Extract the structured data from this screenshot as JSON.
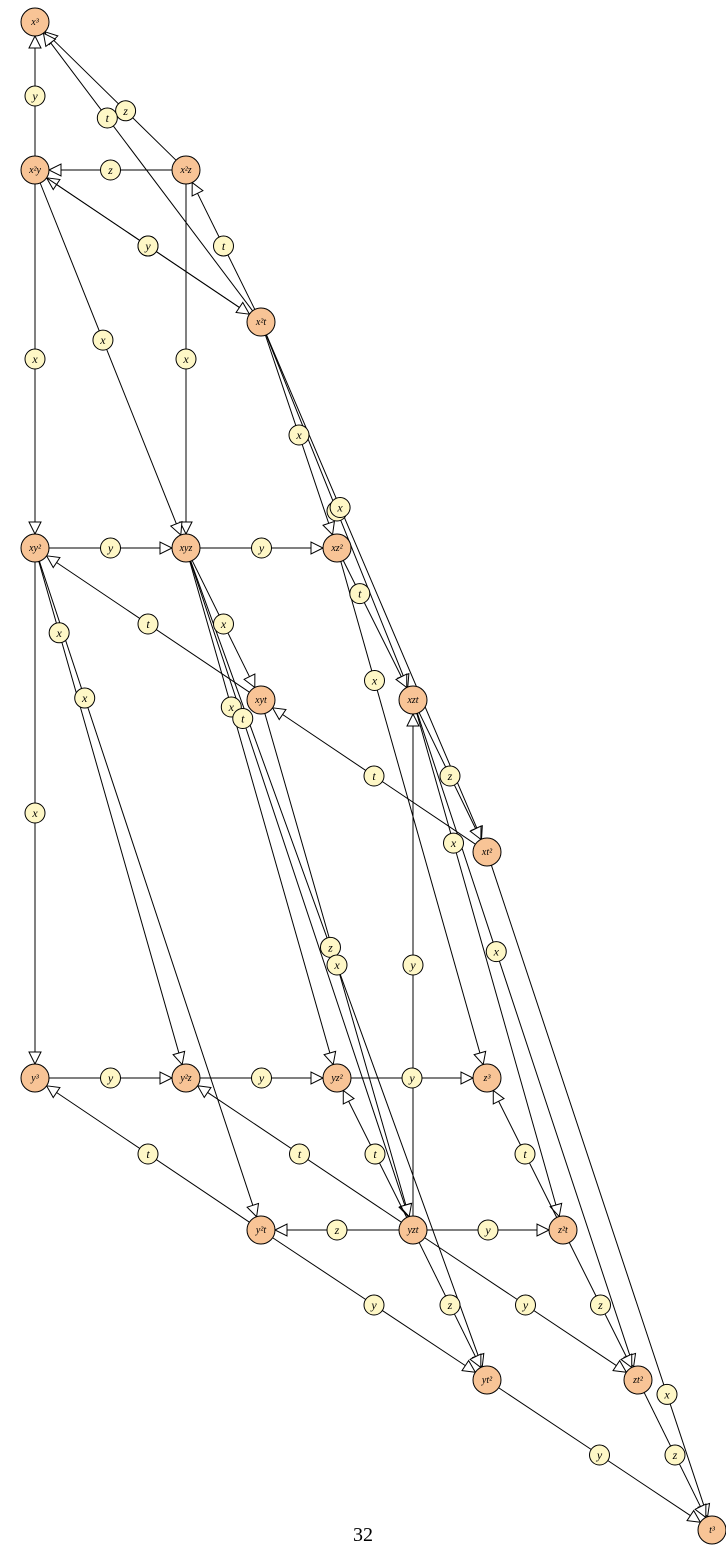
{
  "page_number": "32",
  "colors": {
    "node_fill": "#f8c496",
    "label_fill": "#fef7c6",
    "stroke": "#000000"
  },
  "nodes": [
    {
      "id": "x3",
      "label": "x³"
    },
    {
      "id": "x2y",
      "label": "x²y"
    },
    {
      "id": "x2z",
      "label": "x²z"
    },
    {
      "id": "x2t",
      "label": "x²t"
    },
    {
      "id": "xy2",
      "label": "xy²"
    },
    {
      "id": "xyz",
      "label": "xyz"
    },
    {
      "id": "xz2",
      "label": "xz²"
    },
    {
      "id": "xyt",
      "label": "xyt"
    },
    {
      "id": "xzt",
      "label": "xzt"
    },
    {
      "id": "xt2",
      "label": "xt²"
    },
    {
      "id": "y3",
      "label": "y³"
    },
    {
      "id": "y2z",
      "label": "y²z"
    },
    {
      "id": "yz2",
      "label": "yz²"
    },
    {
      "id": "z3",
      "label": "z³"
    },
    {
      "id": "y2t",
      "label": "y²t"
    },
    {
      "id": "yzt",
      "label": "yzt"
    },
    {
      "id": "z2t",
      "label": "z²t"
    },
    {
      "id": "yt2",
      "label": "yt²"
    },
    {
      "id": "zt2",
      "label": "zt²"
    },
    {
      "id": "t3",
      "label": "t³"
    }
  ],
  "edges": [
    {
      "from": "x2y",
      "to": "x3",
      "label": "y"
    },
    {
      "from": "x2z",
      "to": "x3",
      "label": "z"
    },
    {
      "from": "x2t",
      "to": "x3",
      "label": "t"
    },
    {
      "from": "x2z",
      "to": "x2y",
      "label": "z"
    },
    {
      "from": "x2t",
      "to": "x2y",
      "label": "t"
    },
    {
      "from": "x2y",
      "to": "x2t",
      "label": "y"
    },
    {
      "from": "x2t",
      "to": "x2z",
      "label": "t"
    },
    {
      "from": "x2y",
      "to": "xy2",
      "label": "x"
    },
    {
      "from": "x2z",
      "to": "xyz",
      "label": "x"
    },
    {
      "from": "x2y",
      "to": "xyz",
      "label": "x"
    },
    {
      "from": "x2t",
      "to": "xz2",
      "label": "x"
    },
    {
      "from": "x2t",
      "to": "xzt",
      "label": "x"
    },
    {
      "from": "x2t",
      "to": "xt2",
      "label": "x"
    },
    {
      "from": "xy2",
      "to": "xyz",
      "label": "y"
    },
    {
      "from": "xyz",
      "to": "xz2",
      "label": "y"
    },
    {
      "from": "xyt",
      "to": "xy2",
      "label": "t"
    },
    {
      "from": "xyz",
      "to": "xyt",
      "label": "x"
    },
    {
      "from": "xz2",
      "to": "xzt",
      "label": "t"
    },
    {
      "from": "xt2",
      "to": "xyt",
      "label": "t"
    },
    {
      "from": "xzt",
      "to": "xt2",
      "label": "z"
    },
    {
      "from": "xy2",
      "to": "y3",
      "label": "x"
    },
    {
      "from": "xy2",
      "to": "y2z",
      "label": "x"
    },
    {
      "from": "xy2",
      "to": "y2t",
      "label": "x"
    },
    {
      "from": "xyz",
      "to": "yz2",
      "label": "x"
    },
    {
      "from": "xyz",
      "to": "yzt",
      "label": "t"
    },
    {
      "from": "xyz",
      "to": "yt2",
      "label": "z"
    },
    {
      "from": "xyt",
      "to": "yzt",
      "label": "x"
    },
    {
      "from": "xz2",
      "to": "z3",
      "label": "x"
    },
    {
      "from": "xzt",
      "to": "z2t",
      "label": "x"
    },
    {
      "from": "xzt",
      "to": "zt2",
      "label": "x"
    },
    {
      "from": "xt2",
      "to": "t3",
      "label": "x"
    },
    {
      "from": "yzt",
      "to": "xzt",
      "label": "y"
    },
    {
      "from": "y3",
      "to": "y2z",
      "label": "y"
    },
    {
      "from": "y2z",
      "to": "yz2",
      "label": "y"
    },
    {
      "from": "yz2",
      "to": "z3",
      "label": "y"
    },
    {
      "from": "y2t",
      "to": "y3",
      "label": "t"
    },
    {
      "from": "yzt",
      "to": "y2z",
      "label": "t"
    },
    {
      "from": "yzt",
      "to": "yz2",
      "label": "t"
    },
    {
      "from": "z2t",
      "to": "z3",
      "label": "t"
    },
    {
      "from": "yzt",
      "to": "y2t",
      "label": "z"
    },
    {
      "from": "yzt",
      "to": "z2t",
      "label": "y"
    },
    {
      "from": "y2t",
      "to": "yt2",
      "label": "y"
    },
    {
      "from": "yzt",
      "to": "yt2",
      "label": "z"
    },
    {
      "from": "yzt",
      "to": "zt2",
      "label": "y"
    },
    {
      "from": "z2t",
      "to": "zt2",
      "label": "z"
    },
    {
      "from": "yt2",
      "to": "t3",
      "label": "y"
    },
    {
      "from": "zt2",
      "to": "t3",
      "label": "z"
    }
  ]
}
